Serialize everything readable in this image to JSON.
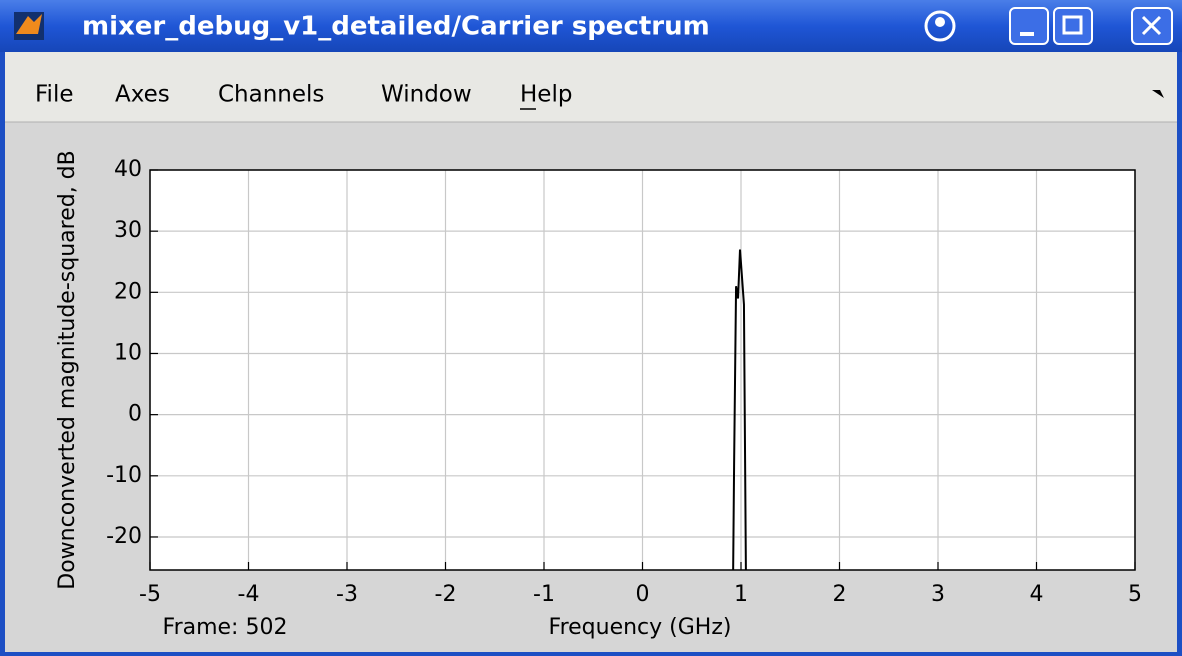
{
  "window": {
    "title": "mixer_debug_v1_detailed/Carrier spectrum",
    "menu": [
      "File",
      "Axes",
      "Channels",
      "Window",
      "Help"
    ]
  },
  "chart_data": {
    "type": "line",
    "x_label": "Frequency (GHz)",
    "y_label": "Downconverted magnitude-squared, dB",
    "annotation": "Frame: 502",
    "x": [
      0.92,
      0.93,
      0.95,
      0.97,
      0.99,
      1.03,
      1.05
    ],
    "values": [
      -26,
      -8,
      21,
      19,
      27,
      18,
      -26
    ],
    "color": "#000000",
    "xlim": [
      -5,
      5
    ],
    "ylim": [
      -25.4,
      40
    ],
    "xticks": [
      -5,
      -4,
      -3,
      -2,
      -1,
      0,
      1,
      2,
      3,
      4,
      5
    ],
    "yticks": [
      -20,
      -10,
      0,
      10,
      20,
      30,
      40
    ],
    "grid": true
  }
}
